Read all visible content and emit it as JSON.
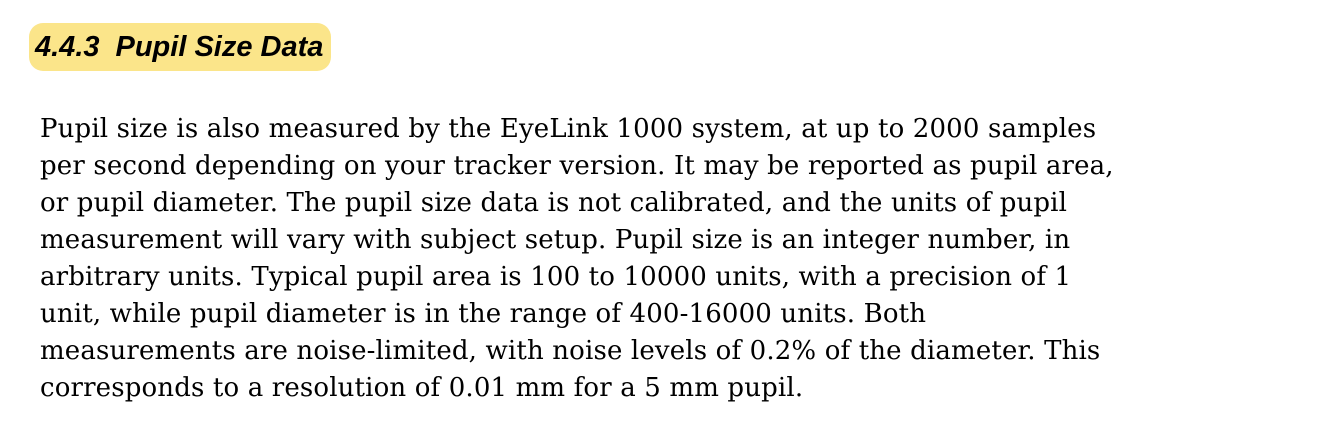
{
  "section": {
    "number": "4.4.3",
    "title": "Pupil Size Data"
  },
  "paragraph": {
    "lines": [
      "Pupil size is also measured by the EyeLink 1000 system, at up to 2000 samples",
      "per second depending on your tracker version. It may be reported as pupil area,",
      "or pupil diameter. The pupil size data is not calibrated, and the units of pupil",
      "measurement will vary with subject setup. Pupil size is an integer number, in",
      "arbitrary units. Typical pupil area is 100 to 10000 units, with a precision of 1",
      "unit, while pupil diameter is in the range of 400-16000 units. Both",
      "measurements are noise-limited, with noise levels of 0.2% of the diameter. This",
      "corresponds to a resolution of 0.01 mm for a 5 mm pupil."
    ]
  },
  "colors": {
    "heading_highlight": "#fbe58a",
    "text": "#000000",
    "background": "#ffffff"
  }
}
